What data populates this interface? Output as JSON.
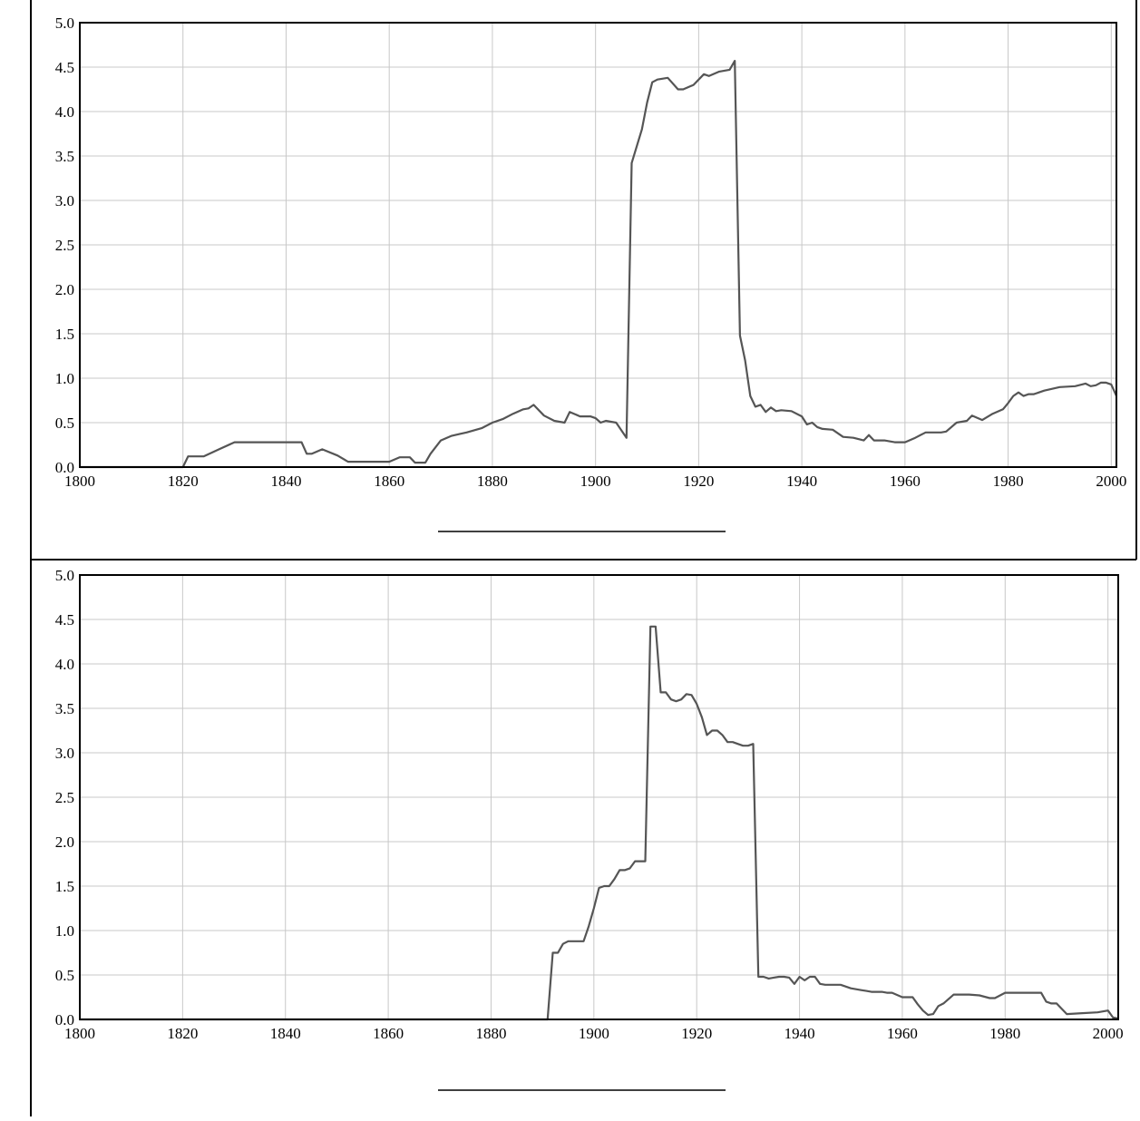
{
  "chart_data": [
    {
      "type": "line",
      "title": "",
      "xlabel": "",
      "ylabel": "",
      "xlim": [
        1800,
        2001
      ],
      "ylim": [
        0,
        5.0
      ],
      "x_ticks": [
        "1800",
        "1820",
        "1840",
        "1860",
        "1880",
        "1900",
        "1920",
        "1940",
        "1960",
        "1980",
        "2000"
      ],
      "y_ticks": [
        "0.0",
        "0.5",
        "1.0",
        "1.5",
        "2.0",
        "2.5",
        "3.0",
        "3.5",
        "4.0",
        "4.5",
        "5.0"
      ],
      "grid": true,
      "legend": "none",
      "line_color": "#555555",
      "series": [
        {
          "x": [
            1800,
            1820,
            1821,
            1824,
            1827,
            1830,
            1835,
            1842,
            1843,
            1844,
            1845,
            1847,
            1850,
            1852,
            1855,
            1860,
            1862,
            1864,
            1865,
            1867,
            1868,
            1870,
            1872,
            1875,
            1878,
            1880,
            1882,
            1884,
            1886,
            1887,
            1888,
            1890,
            1892,
            1894,
            1895,
            1897,
            1899,
            1900,
            1901,
            1902,
            1904,
            1906,
            1907,
            1909,
            1910,
            1911,
            1912,
            1914,
            1916,
            1917,
            1919,
            1921,
            1922,
            1924,
            1926,
            1927,
            1928,
            1929,
            1930,
            1931,
            1932,
            1933,
            1934,
            1935,
            1936,
            1938,
            1940,
            1941,
            1942,
            1943,
            1944,
            1946,
            1948,
            1950,
            1952,
            1953,
            1954,
            1956,
            1958,
            1960,
            1962,
            1964,
            1966,
            1967,
            1968,
            1970,
            1972,
            1973,
            1975,
            1977,
            1979,
            1980,
            1981,
            1982,
            1983,
            1984,
            1985,
            1987,
            1990,
            1993,
            1995,
            1996,
            1997,
            1998,
            1999,
            2000,
            2001
          ],
          "values": [
            0,
            0,
            0.12,
            0.12,
            0.2,
            0.28,
            0.28,
            0.28,
            0.28,
            0.15,
            0.15,
            0.2,
            0.13,
            0.06,
            0.06,
            0.06,
            0.11,
            0.11,
            0.05,
            0.05,
            0.15,
            0.3,
            0.35,
            0.39,
            0.44,
            0.5,
            0.54,
            0.6,
            0.65,
            0.66,
            0.7,
            0.58,
            0.52,
            0.5,
            0.62,
            0.57,
            0.57,
            0.55,
            0.5,
            0.52,
            0.5,
            0.33,
            3.42,
            3.8,
            4.1,
            4.33,
            4.36,
            4.38,
            4.25,
            4.25,
            4.3,
            4.42,
            4.4,
            4.45,
            4.47,
            4.57,
            1.48,
            1.2,
            0.8,
            0.68,
            0.7,
            0.62,
            0.67,
            0.63,
            0.64,
            0.63,
            0.57,
            0.48,
            0.5,
            0.45,
            0.43,
            0.42,
            0.34,
            0.33,
            0.3,
            0.36,
            0.3,
            0.3,
            0.28,
            0.28,
            0.33,
            0.39,
            0.39,
            0.39,
            0.4,
            0.5,
            0.52,
            0.58,
            0.53,
            0.6,
            0.65,
            0.72,
            0.8,
            0.84,
            0.8,
            0.82,
            0.82,
            0.86,
            0.9,
            0.91,
            0.94,
            0.91,
            0.92,
            0.95,
            0.95,
            0.93,
            0.8
          ]
        }
      ]
    },
    {
      "type": "line",
      "title": "",
      "xlabel": "",
      "ylabel": "",
      "xlim": [
        1800,
        2002
      ],
      "ylim": [
        0,
        5.0
      ],
      "x_ticks": [
        "1800",
        "1820",
        "1840",
        "1860",
        "1880",
        "1900",
        "1920",
        "1940",
        "1960",
        "1980",
        "2000"
      ],
      "y_ticks": [
        "0.0",
        "0.5",
        "1.0",
        "1.5",
        "2.0",
        "2.5",
        "3.0",
        "3.5",
        "4.0",
        "4.5",
        "5.0"
      ],
      "grid": true,
      "legend": "none",
      "line_color": "#555555",
      "series": [
        {
          "x": [
            1800,
            1891,
            1892,
            1893,
            1894,
            1895,
            1897,
            1898,
            1899,
            1900,
            1901,
            1902,
            1903,
            1904,
            1905,
            1906,
            1907,
            1908,
            1910,
            1911,
            1912,
            1913,
            1914,
            1915,
            1916,
            1917,
            1918,
            1919,
            1920,
            1921,
            1922,
            1923,
            1924,
            1925,
            1926,
            1927,
            1928,
            1929,
            1930,
            1931,
            1932,
            1933,
            1934,
            1935,
            1936,
            1937,
            1938,
            1939,
            1940,
            1941,
            1942,
            1943,
            1944,
            1945,
            1946,
            1947,
            1948,
            1950,
            1952,
            1953,
            1954,
            1955,
            1956,
            1957,
            1958,
            1960,
            1961,
            1962,
            1963,
            1964,
            1965,
            1966,
            1967,
            1968,
            1970,
            1972,
            1973,
            1975,
            1977,
            1978,
            1980,
            1982,
            1984,
            1986,
            1987,
            1988,
            1989,
            1990,
            1992,
            1995,
            1998,
            2000,
            2001,
            2002
          ],
          "values": [
            0,
            0,
            0.75,
            0.75,
            0.85,
            0.88,
            0.88,
            0.88,
            1.05,
            1.25,
            1.48,
            1.5,
            1.5,
            1.58,
            1.68,
            1.68,
            1.7,
            1.78,
            1.78,
            4.42,
            4.42,
            3.68,
            3.68,
            3.6,
            3.58,
            3.6,
            3.66,
            3.65,
            3.55,
            3.4,
            3.2,
            3.25,
            3.25,
            3.2,
            3.12,
            3.12,
            3.1,
            3.08,
            3.08,
            3.1,
            0.48,
            0.48,
            0.46,
            0.47,
            0.48,
            0.48,
            0.47,
            0.4,
            0.48,
            0.44,
            0.48,
            0.48,
            0.4,
            0.39,
            0.39,
            0.39,
            0.39,
            0.35,
            0.33,
            0.32,
            0.31,
            0.31,
            0.31,
            0.3,
            0.3,
            0.25,
            0.25,
            0.25,
            0.17,
            0.1,
            0.05,
            0.06,
            0.15,
            0.18,
            0.28,
            0.28,
            0.28,
            0.27,
            0.24,
            0.24,
            0.3,
            0.3,
            0.3,
            0.3,
            0.3,
            0.2,
            0.18,
            0.18,
            0.06,
            0.07,
            0.08,
            0.1,
            0.02,
            0.01
          ]
        }
      ]
    }
  ]
}
